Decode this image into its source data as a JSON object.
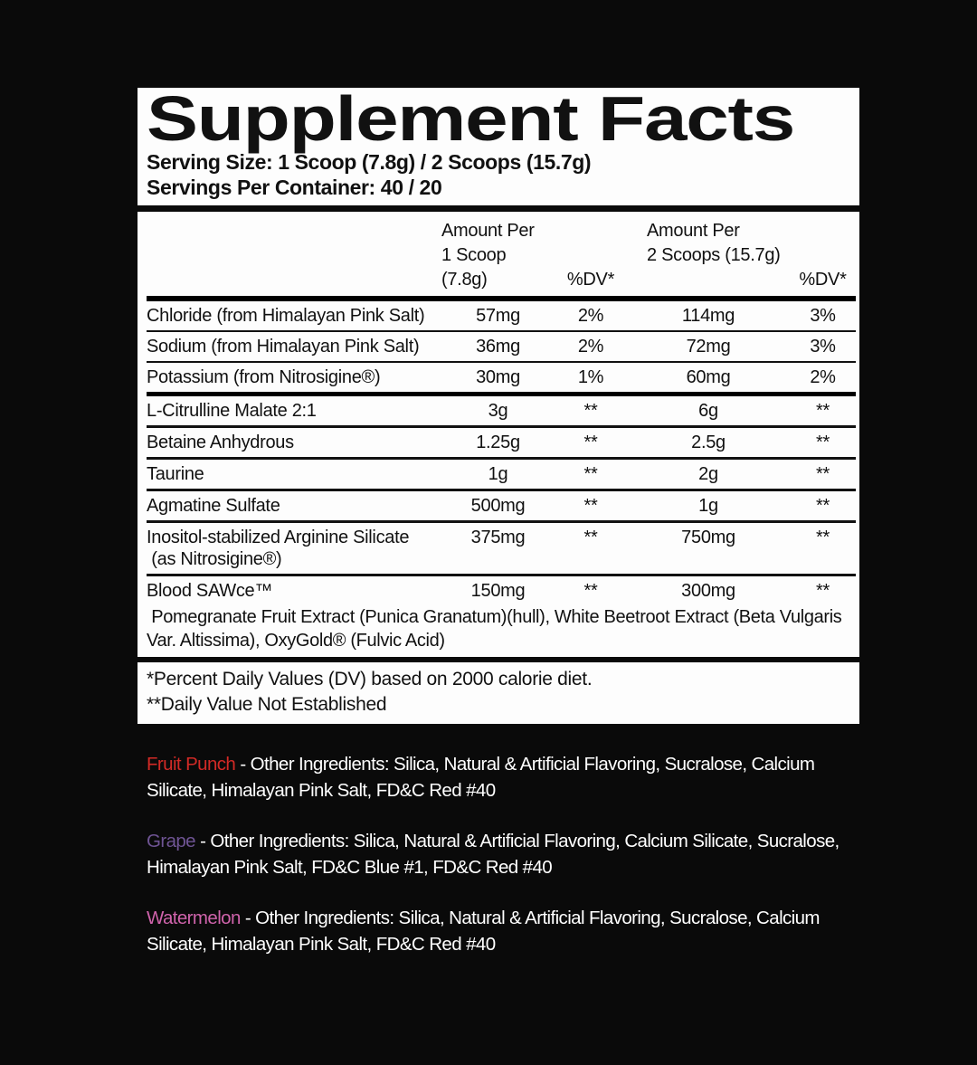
{
  "header": {
    "title": "Supplement Facts",
    "serving_size": "Serving Size: 1 Scoop (7.8g) / 2 Scoops (15.7g)",
    "servings_per_container": "Servings Per Container: 40 / 20"
  },
  "table": {
    "columns": {
      "col1_line1": "Amount Per",
      "col1_line2": "1 Scoop (7.8g)",
      "col1_dv": "%DV*",
      "col2_line1": "Amount Per",
      "col2_line2": "2 Scoops (15.7g)",
      "col2_dv": "%DV*"
    },
    "rows": [
      {
        "name": "Chloride (from Himalayan Pink Salt)",
        "amount1": "57mg",
        "dv1": "2%",
        "amount2": "114mg",
        "dv2": "3%"
      },
      {
        "name": "Sodium (from Himalayan Pink Salt)",
        "amount1": "36mg",
        "dv1": "2%",
        "amount2": "72mg",
        "dv2": "3%"
      },
      {
        "name": "Potassium (from Nitrosigine®)",
        "amount1": "30mg",
        "dv1": "1%",
        "amount2": "60mg",
        "dv2": "2%"
      },
      {
        "name": "L-Citrulline Malate 2:1",
        "amount1": "3g",
        "dv1": "**",
        "amount2": "6g",
        "dv2": "**"
      },
      {
        "name": "Betaine Anhydrous",
        "amount1": "1.25g",
        "dv1": "**",
        "amount2": "2.5g",
        "dv2": "**"
      },
      {
        "name": "Taurine",
        "amount1": "1g",
        "dv1": "**",
        "amount2": "2g",
        "dv2": "**"
      },
      {
        "name": "Agmatine Sulfate",
        "amount1": "500mg",
        "dv1": "**",
        "amount2": "1g",
        "dv2": "**"
      },
      {
        "name": "Inositol-stabilized Arginine Silicate",
        "name2": " (as Nitrosigine®)",
        "amount1": "375mg",
        "dv1": "**",
        "amount2": "750mg",
        "dv2": "**"
      },
      {
        "name": "Blood SAWce™",
        "amount1": "150mg",
        "dv1": "**",
        "amount2": "300mg",
        "dv2": "**",
        "description": " Pomegranate Fruit Extract (Punica Granatum)(hull), White Beetroot Extract (Beta Vulgaris Var. Altissima), OxyGold® (Fulvic Acid)"
      }
    ]
  },
  "footnotes": {
    "line1": "*Percent Daily Values (DV) based on 2000 calorie diet.",
    "line2": "**Daily Value Not Established"
  },
  "flavors": [
    {
      "name": "Fruit Punch",
      "color": "#d32a26",
      "text": " - Other Ingredients: Silica, Natural & Artificial Flavoring, Sucralose, Calcium Silicate, Himalayan Pink Salt, FD&C Red #40"
    },
    {
      "name": "Grape",
      "color": "#6f5494",
      "text": " - Other Ingredients: Silica, Natural & Artificial Flavoring, Calcium Silicate, Sucralose, Himalayan Pink Salt, FD&C Blue #1, FD&C Red #40"
    },
    {
      "name": "Watermelon",
      "color": "#cf63ab",
      "text": " - Other Ingredients: Silica, Natural & Artificial Flavoring, Sucralose, Calcium Silicate, Himalayan Pink Salt, FD&C Red #40"
    }
  ]
}
